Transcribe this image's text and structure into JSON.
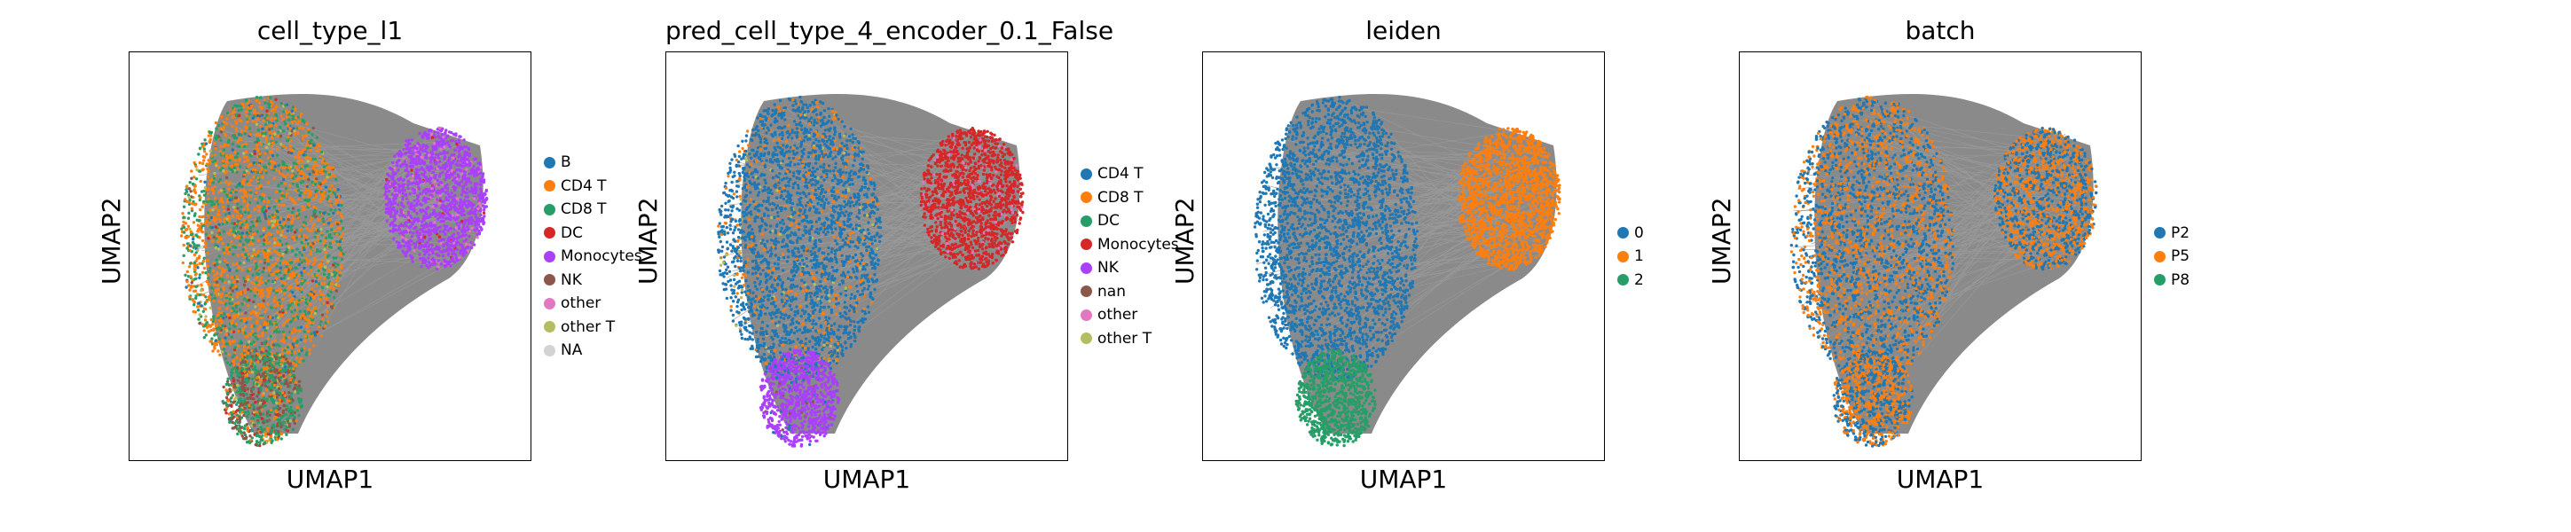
{
  "chart_data": [
    {
      "type": "scatter",
      "title": "cell_type_l1",
      "xlabel": "UMAP1",
      "ylabel": "UMAP2",
      "legend_position": "right",
      "grid": false,
      "legend": [
        {
          "name": "B",
          "color": "#1f77b4"
        },
        {
          "name": "CD4 T",
          "color": "#ff7f0e"
        },
        {
          "name": "CD8 T",
          "color": "#279e68"
        },
        {
          "name": "DC",
          "color": "#d62728"
        },
        {
          "name": "Monocytes",
          "color": "#aa40fc"
        },
        {
          "name": "NK",
          "color": "#8c564b"
        },
        {
          "name": "other",
          "color": "#e377c2"
        },
        {
          "name": "other T",
          "color": "#b5bd61"
        },
        {
          "name": "NA",
          "color": "#d3d3d3"
        }
      ]
    },
    {
      "type": "scatter",
      "title": "pred_cell_type_4_encoder_0.1_False",
      "xlabel": "UMAP1",
      "ylabel": "UMAP2",
      "legend_position": "right",
      "grid": false,
      "legend": [
        {
          "name": "CD4 T",
          "color": "#1f77b4"
        },
        {
          "name": "CD8 T",
          "color": "#ff7f0e"
        },
        {
          "name": "DC",
          "color": "#279e68"
        },
        {
          "name": "Monocytes",
          "color": "#d62728"
        },
        {
          "name": "NK",
          "color": "#aa40fc"
        },
        {
          "name": "nan",
          "color": "#8c564b"
        },
        {
          "name": "other",
          "color": "#e377c2"
        },
        {
          "name": "other T",
          "color": "#b5bd61"
        }
      ]
    },
    {
      "type": "scatter",
      "title": "leiden",
      "xlabel": "UMAP1",
      "ylabel": "UMAP2",
      "legend_position": "right",
      "grid": false,
      "legend": [
        {
          "name": "0",
          "color": "#1f77b4"
        },
        {
          "name": "1",
          "color": "#ff7f0e"
        },
        {
          "name": "2",
          "color": "#279e68"
        }
      ]
    },
    {
      "type": "scatter",
      "title": "batch",
      "xlabel": "UMAP1",
      "ylabel": "UMAP2",
      "legend_position": "right",
      "grid": false,
      "legend": [
        {
          "name": "P2",
          "color": "#1f77b4"
        },
        {
          "name": "P5",
          "color": "#ff7f0e"
        },
        {
          "name": "P8",
          "color": "#279e68"
        }
      ]
    }
  ]
}
